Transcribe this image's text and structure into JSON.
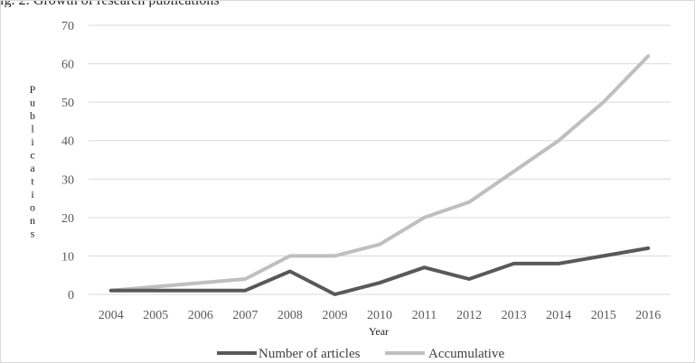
{
  "caption": "ig. 2: Growth of research publications",
  "chart_data": {
    "type": "line",
    "title": "",
    "xlabel": "Year",
    "ylabel": "Publications",
    "categories": [
      "2004",
      "2005",
      "2006",
      "2007",
      "2008",
      "2009",
      "2010",
      "2011",
      "2012",
      "2013",
      "2014",
      "2015",
      "2016"
    ],
    "ylim": [
      0,
      70
    ],
    "yticks": [
      0,
      10,
      20,
      30,
      40,
      50,
      60,
      70
    ],
    "grid": "horizontal",
    "legend_position": "bottom",
    "series": [
      {
        "name": "Number of articles",
        "color": "#595959",
        "values": [
          1,
          1,
          1,
          1,
          6,
          0,
          3,
          7,
          4,
          8,
          8,
          10,
          12
        ]
      },
      {
        "name": "Accumulative",
        "color": "#bfbfbf",
        "values": [
          1,
          2,
          3,
          4,
          10,
          10,
          13,
          20,
          24,
          32,
          40,
          50,
          62
        ]
      }
    ]
  }
}
